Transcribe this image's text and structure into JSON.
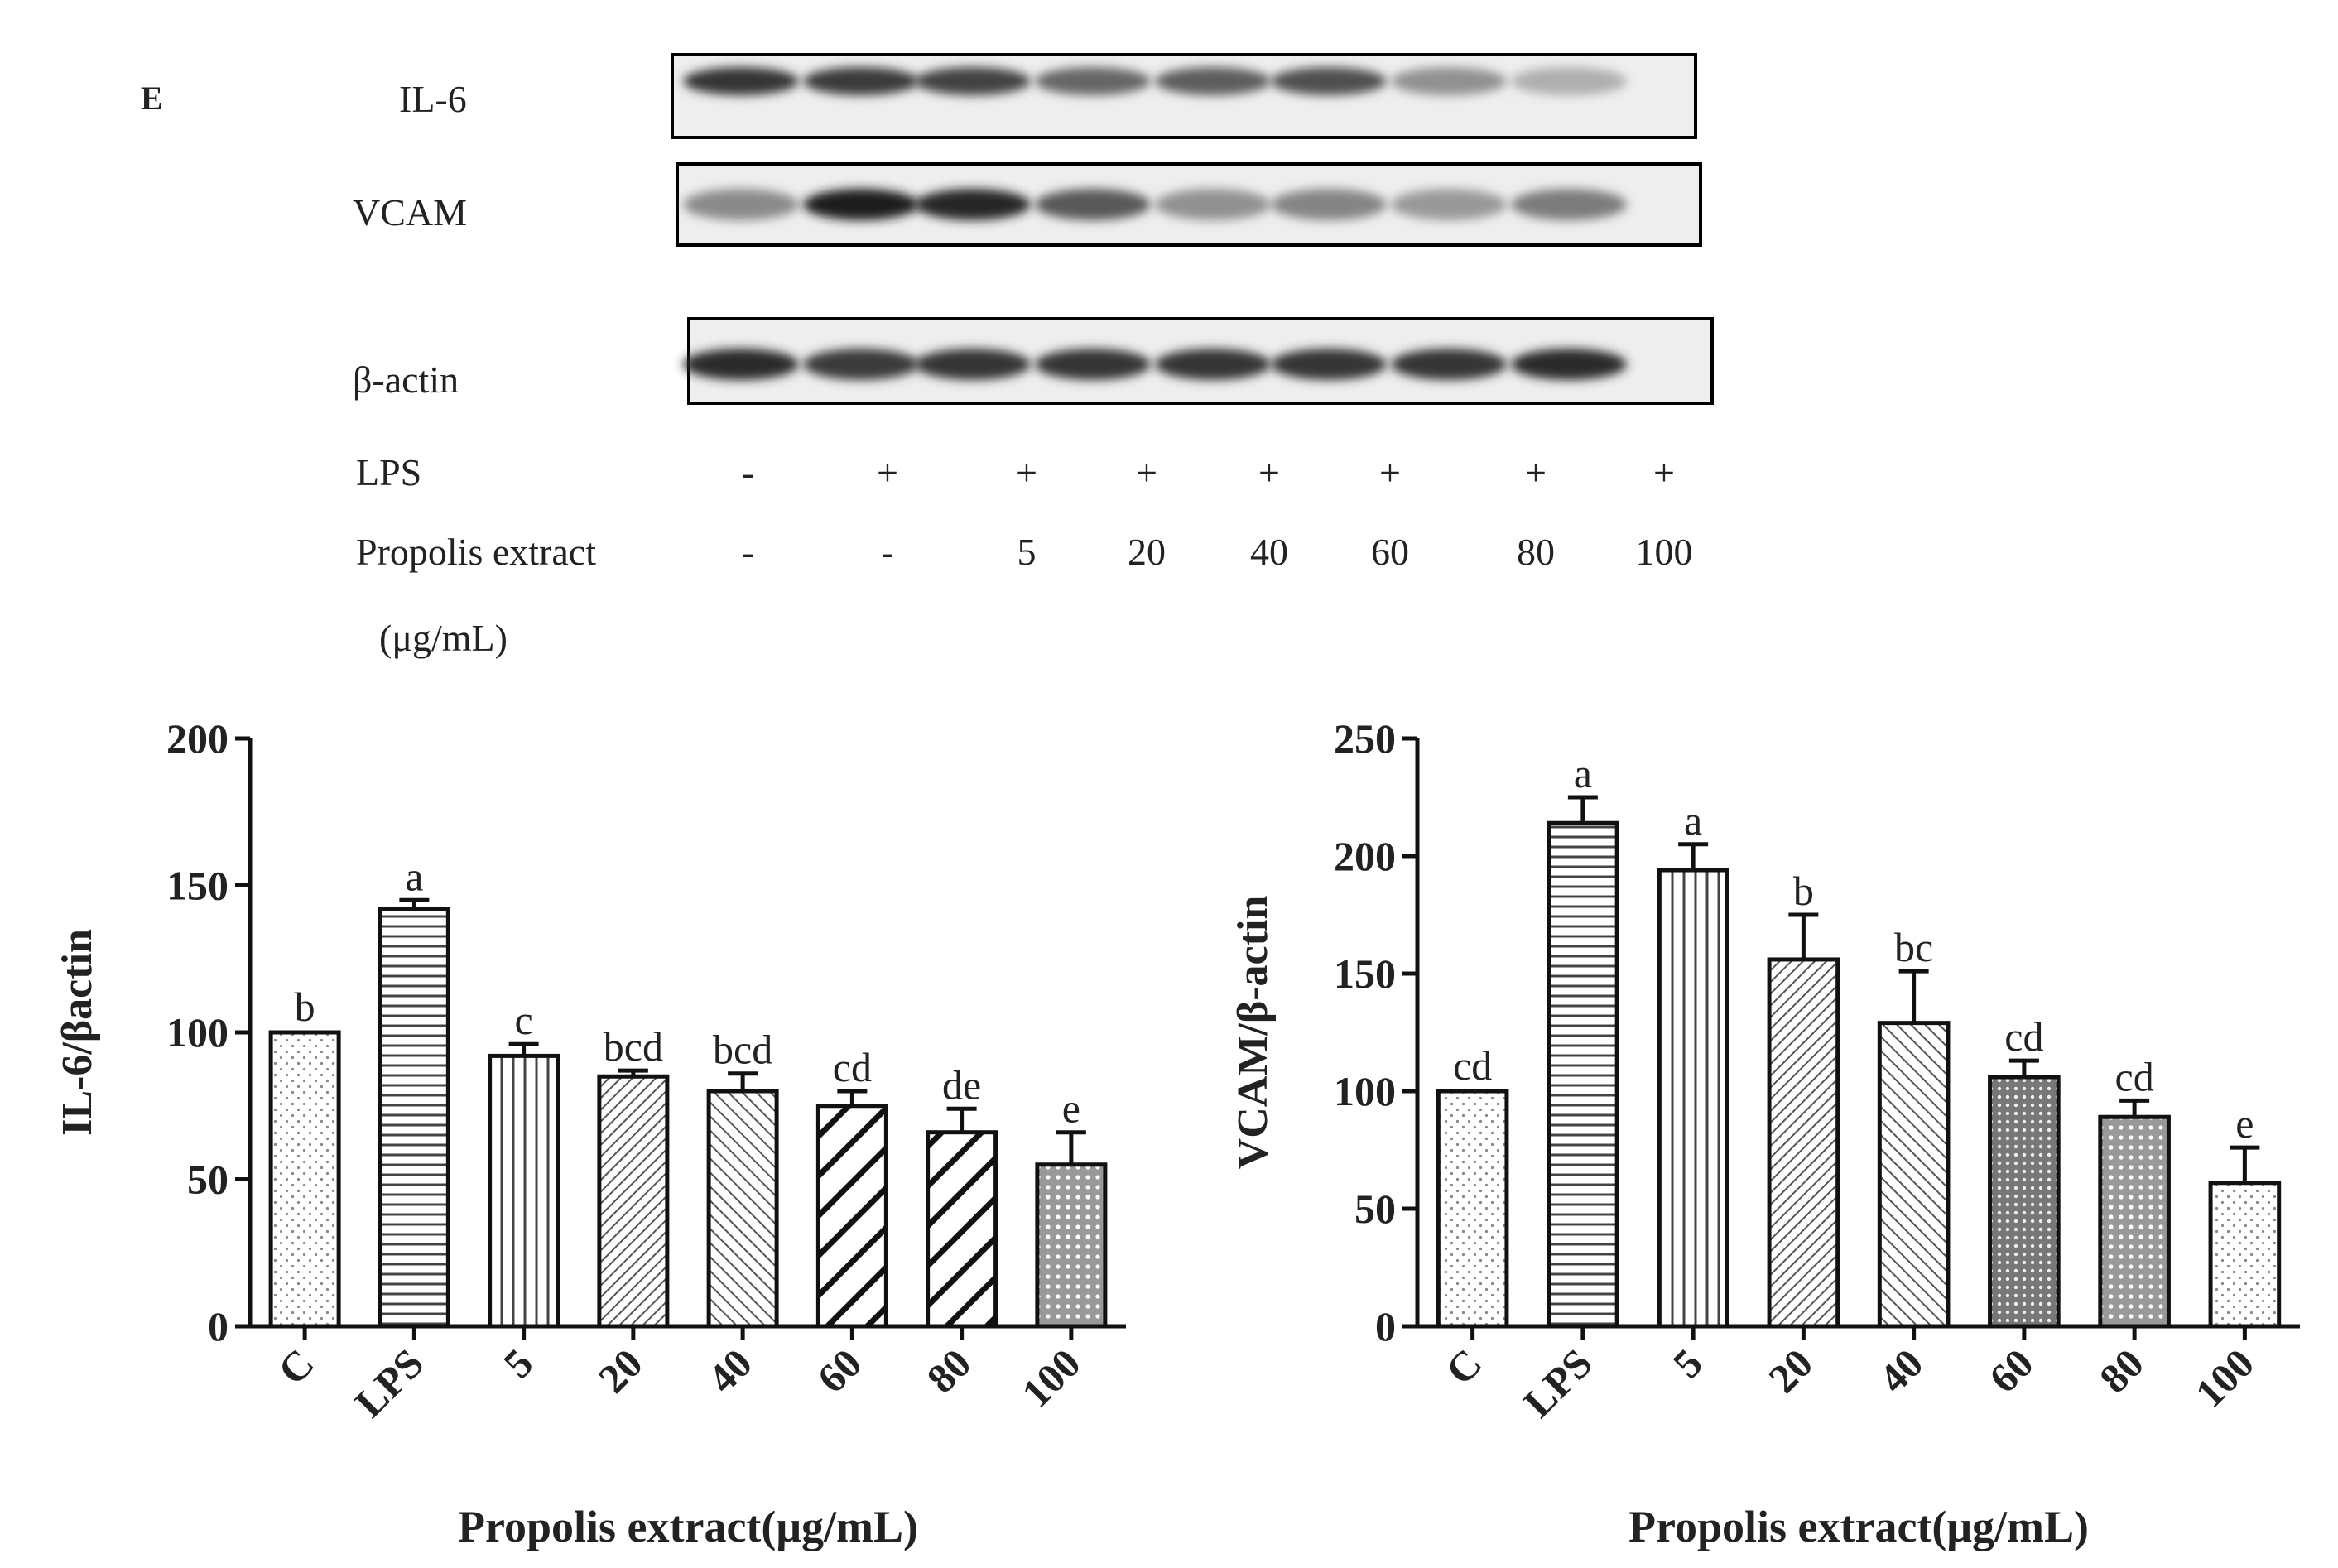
{
  "panel_label": "E",
  "blot": {
    "rows": [
      {
        "label": "IL-6",
        "intensities": [
          0.85,
          0.82,
          0.78,
          0.62,
          0.66,
          0.72,
          0.42,
          0.28
        ]
      },
      {
        "label": "VCAM",
        "intensities": [
          0.45,
          0.95,
          0.92,
          0.68,
          0.42,
          0.48,
          0.38,
          0.52
        ]
      },
      {
        "label": "β-actin",
        "intensities": [
          0.9,
          0.82,
          0.85,
          0.85,
          0.85,
          0.85,
          0.85,
          0.9
        ]
      }
    ],
    "conditions": [
      {
        "label": "LPS",
        "values": [
          "-",
          "+",
          "+",
          "+",
          "+",
          "+",
          "+",
          "+"
        ]
      },
      {
        "label": "Propolis extract",
        "values": [
          "-",
          "-",
          "5",
          "20",
          "40",
          "60",
          "80",
          "100"
        ]
      }
    ],
    "unit_label": "(μg/mL)"
  },
  "chart_data": [
    {
      "type": "bar",
      "categories": [
        "C",
        "LPS",
        "5",
        "20",
        "40",
        "60",
        "80",
        "100"
      ],
      "values": [
        100,
        142,
        92,
        85,
        80,
        75,
        66,
        55
      ],
      "errors": [
        0,
        3,
        4,
        2,
        6,
        5,
        8,
        11
      ],
      "significance": [
        "b",
        "a",
        "c",
        "bcd",
        "bcd",
        "cd",
        "de",
        "e"
      ],
      "patterns": [
        "dots",
        "hlines",
        "vlines",
        "diag-fine",
        "diag-fine2",
        "diag-bold",
        "diag-bold",
        "crosshatch"
      ],
      "ylabel": "IL-6/βactin",
      "xlabel": "Propolis extract(μg/mL)",
      "ylim": [
        0,
        200
      ],
      "yticks": [
        0,
        50,
        100,
        150,
        200
      ]
    },
    {
      "type": "bar",
      "categories": [
        "C",
        "LPS",
        "5",
        "20",
        "40",
        "60",
        "80",
        "100"
      ],
      "values": [
        100,
        214,
        194,
        156,
        129,
        106,
        89,
        61
      ],
      "errors": [
        0,
        11,
        11,
        19,
        22,
        7,
        7,
        15
      ],
      "significance": [
        "cd",
        "a",
        "a",
        "b",
        "bc",
        "cd",
        "cd",
        "e"
      ],
      "patterns": [
        "dots",
        "hlines",
        "vlines",
        "diag-fine",
        "diag-fine2",
        "cross-dense",
        "crosshatch",
        "dots"
      ],
      "ylabel": "VCAM/β-actin",
      "xlabel": "Propolis extract(μg/mL)",
      "ylim": [
        0,
        250
      ],
      "yticks": [
        0,
        50,
        100,
        150,
        200,
        250
      ]
    }
  ]
}
